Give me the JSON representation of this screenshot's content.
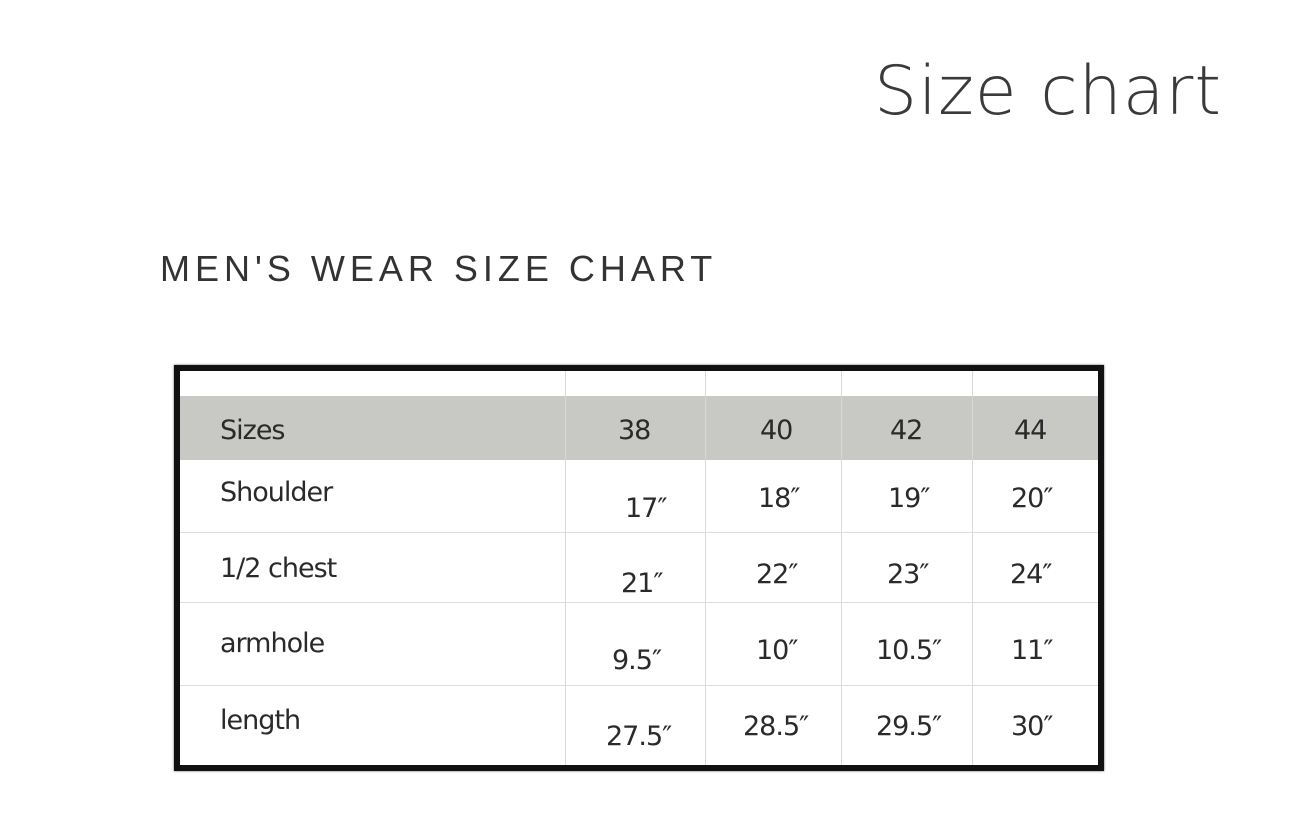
{
  "page": {
    "title": "Size chart"
  },
  "section": {
    "heading": "MEN'S WEAR SIZE CHART"
  },
  "table": {
    "header": [
      "Sizes",
      "38",
      "40",
      "42",
      "44"
    ],
    "rows": [
      {
        "label": "Shoulder",
        "values": [
          "17″",
          "18″",
          "19″",
          "20″"
        ]
      },
      {
        "label": "1/2 chest",
        "values": [
          "21″",
          "22″",
          "23″",
          "24″"
        ]
      },
      {
        "label": "armhole",
        "values": [
          "9.5″",
          "10″",
          "10.5″",
          "11″"
        ]
      },
      {
        "label": "length",
        "values": [
          "27.5″",
          "28.5″",
          "29.5″",
          "30″"
        ]
      }
    ],
    "header_color": "#c8c9c5"
  }
}
